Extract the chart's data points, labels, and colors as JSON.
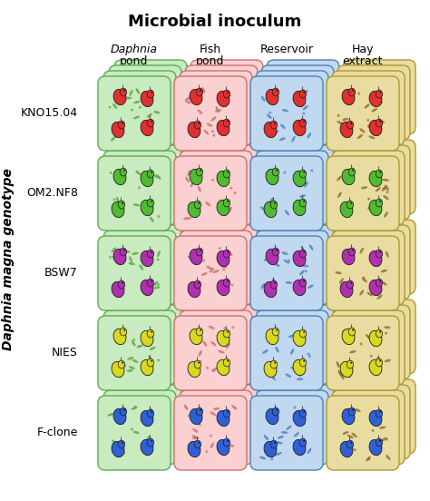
{
  "title": "Microbial inoculum",
  "col_labels": [
    "Daphnia\npond",
    "Fish\npond",
    "Reservoir",
    "Hay\nextract"
  ],
  "row_labels": [
    "KNO15.04",
    "OM2.NF8",
    "BSW7",
    "NIES",
    "F-clone"
  ],
  "y_axis_label": "Daphnia magna genotype",
  "box_fill_colors": [
    "#c8ecc0",
    "#fad0d0",
    "#c0d8f0",
    "#e8dca0"
  ],
  "box_border_colors": [
    "#60aa55",
    "#d07070",
    "#5080b0",
    "#b09830"
  ],
  "daphnia_fill_colors": [
    "#e03030",
    "#50bb30",
    "#b030b0",
    "#d8d820",
    "#3060d8"
  ],
  "daphnia_border_colors": [
    "#222222",
    "#222222",
    "#222222",
    "#222222",
    "#222222"
  ],
  "bacteria_colors_green": "#60a040",
  "bacteria_colors_pink": "#c07070",
  "bacteria_colors_blue": "#5080b0",
  "bacteria_colors_tan": "#906830",
  "bacteria_colors_by_col": [
    "#60a040",
    "#c07070",
    "#5080b0",
    "#906830"
  ],
  "fig_w": 4.74,
  "fig_h": 5.52,
  "dpi": 100,
  "title_fontsize": 13,
  "label_fontsize": 9,
  "row_label_fontsize": 9,
  "yaxis_label_fontsize": 10
}
